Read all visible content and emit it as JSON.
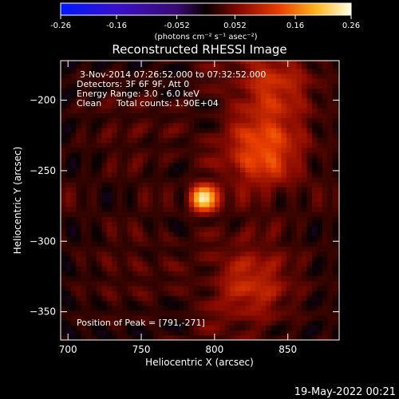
{
  "colorbar": {
    "ticks": [
      "-0.26",
      "-0.16",
      "-0.052",
      "0.052",
      "0.16",
      "0.26"
    ],
    "units": "(photons cm⁻² s⁻¹ asec⁻²)",
    "min": -0.26,
    "max": 0.26
  },
  "footer": {
    "date": "19-May-2022 00:21"
  },
  "chart_data": {
    "type": "heatmap",
    "title": "Reconstructed RHESSI Image",
    "xlabel": "Heliocentric X (arcsec)",
    "ylabel": "Heliocentric Y (arcsec)",
    "xlim": [
      695,
      885
    ],
    "ylim": [
      -370,
      -172
    ],
    "x_ticks": [
      700,
      750,
      800,
      850
    ],
    "y_ticks": [
      -200,
      -250,
      -300,
      -350
    ],
    "annotations": [
      "3-Nov-2014 07:26:52.000 to 07:32:52.000",
      "Detectors: 3F 6F 9F, Att 0",
      "Energy Range: 3.0 - 6.0 keV",
      "Clean",
      "Total counts: 1.90E+04"
    ],
    "peak_label": "Position of Peak = [791,-271]",
    "peak": {
      "x": 791,
      "y": -271,
      "value": 0.26
    },
    "secondary_sources": [
      {
        "x": 832,
        "y": -238,
        "value": 0.11
      },
      {
        "x": 838,
        "y": -190,
        "value": 0.09
      },
      {
        "x": 822,
        "y": -335,
        "value": 0.08
      }
    ]
  }
}
